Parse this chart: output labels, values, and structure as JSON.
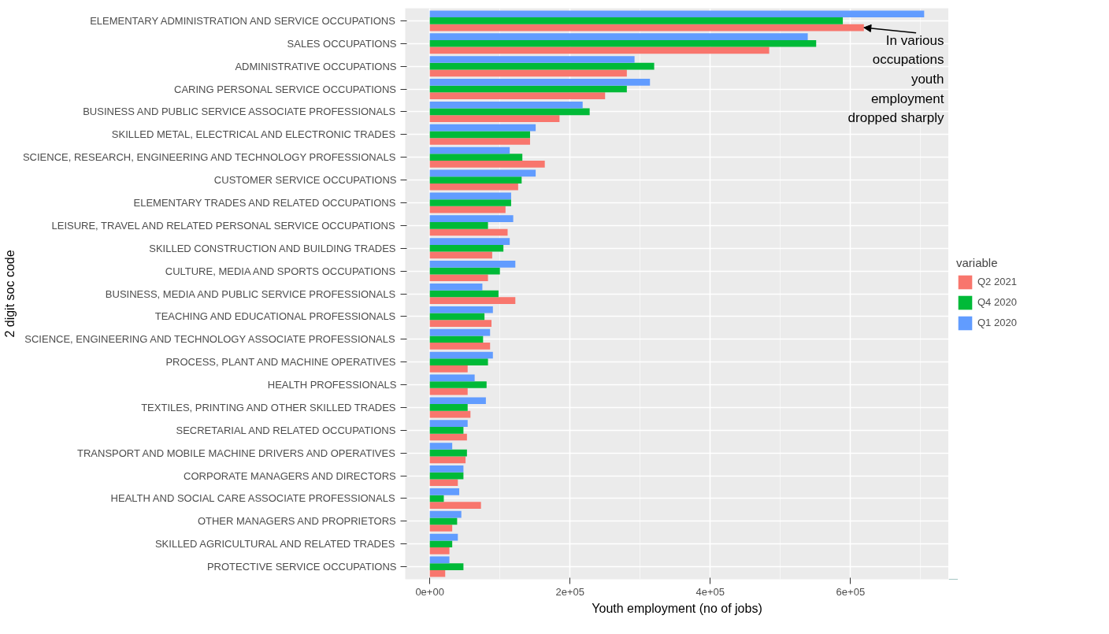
{
  "chart_data": {
    "type": "bar",
    "orientation": "horizontal",
    "xlabel": "Youth employment (no of jobs)",
    "ylabel": "2 digit soc code",
    "legend_title": "variable",
    "legend": "right",
    "grid": true,
    "categories": [
      "ELEMENTARY ADMINISTRATION AND SERVICE OCCUPATIONS",
      "SALES OCCUPATIONS",
      "ADMINISTRATIVE OCCUPATIONS",
      "CARING PERSONAL SERVICE OCCUPATIONS",
      "BUSINESS AND PUBLIC SERVICE ASSOCIATE PROFESSIONALS",
      "SKILLED METAL, ELECTRICAL AND ELECTRONIC TRADES",
      "SCIENCE, RESEARCH, ENGINEERING AND TECHNOLOGY PROFESSIONALS",
      "CUSTOMER SERVICE OCCUPATIONS",
      "ELEMENTARY TRADES AND RELATED OCCUPATIONS",
      "LEISURE, TRAVEL AND RELATED PERSONAL SERVICE OCCUPATIONS",
      "SKILLED CONSTRUCTION AND BUILDING TRADES",
      "CULTURE, MEDIA AND SPORTS OCCUPATIONS",
      "BUSINESS, MEDIA AND PUBLIC SERVICE PROFESSIONALS",
      "TEACHING AND EDUCATIONAL PROFESSIONALS",
      "SCIENCE, ENGINEERING AND TECHNOLOGY ASSOCIATE PROFESSIONALS",
      "PROCESS, PLANT AND MACHINE OPERATIVES",
      "HEALTH PROFESSIONALS",
      "TEXTILES, PRINTING AND OTHER SKILLED TRADES",
      "SECRETARIAL AND RELATED OCCUPATIONS",
      "TRANSPORT AND MOBILE MACHINE DRIVERS AND OPERATIVES",
      "CORPORATE MANAGERS AND DIRECTORS",
      "HEALTH AND SOCIAL CARE ASSOCIATE PROFESSIONALS",
      "OTHER MANAGERS AND PROPRIETORS",
      "SKILLED AGRICULTURAL AND RELATED TRADES",
      "PROTECTIVE SERVICE OCCUPATIONS"
    ],
    "series": [
      {
        "name": "Q2 2021",
        "color": "#f8766d",
        "values": [
          619000,
          484000,
          281000,
          250000,
          185000,
          143000,
          164000,
          126000,
          108000,
          111000,
          89000,
          83000,
          122000,
          88000,
          86000,
          54000,
          54000,
          58000,
          53000,
          51000,
          40000,
          73000,
          32000,
          28000,
          22000
        ]
      },
      {
        "name": "Q4 2020",
        "color": "#00ba38",
        "values": [
          589000,
          551000,
          320000,
          281000,
          228000,
          143000,
          132000,
          131000,
          116000,
          83000,
          105000,
          100000,
          98000,
          78000,
          76000,
          83000,
          81000,
          54000,
          48000,
          53000,
          48000,
          20000,
          39000,
          32000,
          48000
        ]
      },
      {
        "name": "Q1 2020",
        "color": "#619cff",
        "values": [
          705000,
          539000,
          292000,
          314000,
          218000,
          151000,
          114000,
          151000,
          116000,
          119000,
          114000,
          122000,
          75000,
          90000,
          86000,
          90000,
          64000,
          80000,
          54000,
          32000,
          48000,
          42000,
          45000,
          40000,
          28000
        ]
      }
    ],
    "xlim": [
      -35000,
      740000
    ],
    "xticks": [
      {
        "value": 0,
        "label": "0e+00"
      },
      {
        "value": 200000,
        "label": "2e+05"
      },
      {
        "value": 400000,
        "label": "4e+05"
      },
      {
        "value": 600000,
        "label": "6e+05"
      }
    ],
    "annotations": [
      {
        "text": "In various occupations youth employment dropped sharply",
        "x": 619000,
        "y": "ELEMENTARY ADMINISTRATION AND SERVICE OCCUPATIONS"
      }
    ]
  }
}
